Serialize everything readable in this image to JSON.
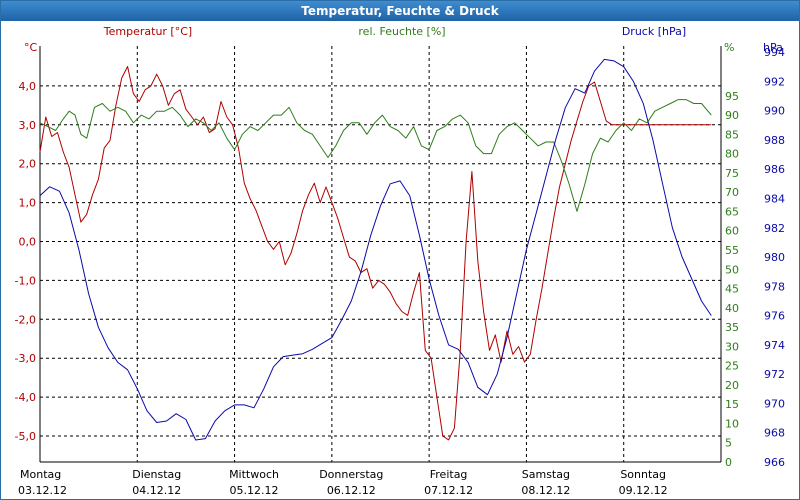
{
  "window": {
    "title": "Temperatur, Feuchte & Druck"
  },
  "chart_data": {
    "type": "line",
    "title": "Temperatur, Feuchte & Druck",
    "series": [
      {
        "name": "Temperatur [°C]",
        "unit": "°C",
        "color": "#b00000",
        "axis": "left",
        "ylim": [
          -5.5,
          5.5
        ],
        "x": [
          0,
          0.06,
          0.12,
          0.18,
          0.24,
          0.3,
          0.36,
          0.42,
          0.48,
          0.54,
          0.6,
          0.66,
          0.72,
          0.78,
          0.84,
          0.9,
          0.96,
          1.02,
          1.08,
          1.14,
          1.2,
          1.26,
          1.32,
          1.38,
          1.44,
          1.5,
          1.56,
          1.62,
          1.68,
          1.74,
          1.8,
          1.86,
          1.92,
          1.98,
          2.04,
          2.1,
          2.16,
          2.22,
          2.28,
          2.34,
          2.4,
          2.46,
          2.52,
          2.58,
          2.64,
          2.7,
          2.76,
          2.82,
          2.88,
          2.94,
          3.0,
          3.06,
          3.12,
          3.18,
          3.24,
          3.3,
          3.36,
          3.42,
          3.48,
          3.54,
          3.6,
          3.66,
          3.72,
          3.78,
          3.84,
          3.9,
          3.96,
          4.02,
          4.08,
          4.14,
          4.2,
          4.26,
          4.32,
          4.38,
          4.44,
          4.5,
          4.56,
          4.62,
          4.68,
          4.74,
          4.8,
          4.86,
          4.92,
          4.98,
          5.04,
          5.1,
          5.16,
          5.22,
          5.28,
          5.34,
          5.4,
          5.46,
          5.52,
          5.58,
          5.64,
          5.7,
          5.76,
          5.82,
          5.88,
          5.94,
          6.0,
          6.06,
          6.12,
          6.18,
          6.24,
          6.3,
          6.36,
          6.42,
          6.48,
          6.54,
          6.6,
          6.66,
          6.72,
          6.8,
          6.85,
          6.9
        ],
        "values": [
          2.3,
          3.2,
          2.7,
          2.8,
          2.3,
          1.9,
          1.2,
          0.5,
          0.7,
          1.2,
          1.6,
          2.4,
          2.6,
          3.5,
          4.2,
          4.5,
          3.8,
          3.6,
          3.9,
          4.0,
          4.3,
          4.0,
          3.5,
          3.8,
          3.9,
          3.4,
          3.2,
          3.0,
          3.2,
          2.8,
          2.9,
          3.6,
          3.2,
          3.0,
          2.4,
          1.5,
          1.1,
          0.8,
          0.4,
          0.0,
          -0.2,
          0.0,
          -0.6,
          -0.3,
          0.2,
          0.8,
          1.2,
          1.5,
          1.0,
          1.4,
          1.0,
          0.6,
          0.1,
          -0.4,
          -0.5,
          -0.8,
          -0.7,
          -1.2,
          -1.0,
          -1.1,
          -1.3,
          -1.6,
          -1.8,
          -1.9,
          -1.3,
          -0.8,
          -2.8,
          -3.0,
          -4.0,
          -5.0,
          -5.1,
          -4.8,
          -2.8,
          0.0,
          1.8,
          -0.5,
          -1.8,
          -2.8,
          -2.4,
          -3.1,
          -2.3,
          -2.9,
          -2.7,
          -3.1,
          -2.9,
          -2.0,
          -1.2,
          -0.3,
          0.6,
          1.4,
          2.0,
          2.6,
          3.1,
          3.6,
          4.0,
          4.1,
          3.6,
          3.1,
          3.0,
          3.0,
          3.0,
          3.0,
          3.0,
          3.0,
          3.0,
          3.0,
          3.0,
          3.0,
          3.0,
          3.0,
          3.0,
          3.0,
          3.0,
          3.0,
          3.0,
          3.0
        ]
      },
      {
        "name": "rel. Feuchte [%]",
        "unit": "%",
        "color": "#2f7d1a",
        "axis": "right",
        "ylim": [
          0,
          100
        ],
        "x": [
          0,
          0.08,
          0.16,
          0.24,
          0.3,
          0.36,
          0.42,
          0.48,
          0.56,
          0.64,
          0.72,
          0.8,
          0.88,
          0.96,
          1.04,
          1.12,
          1.2,
          1.28,
          1.36,
          1.44,
          1.52,
          1.6,
          1.68,
          1.76,
          1.84,
          1.92,
          2.0,
          2.08,
          2.16,
          2.24,
          2.32,
          2.4,
          2.48,
          2.56,
          2.64,
          2.72,
          2.8,
          2.88,
          2.96,
          3.04,
          3.12,
          3.2,
          3.28,
          3.36,
          3.44,
          3.52,
          3.6,
          3.68,
          3.76,
          3.84,
          3.92,
          4.0,
          4.08,
          4.16,
          4.24,
          4.32,
          4.4,
          4.48,
          4.56,
          4.64,
          4.72,
          4.8,
          4.88,
          4.96,
          5.04,
          5.12,
          5.2,
          5.28,
          5.36,
          5.44,
          5.52,
          5.6,
          5.68,
          5.76,
          5.84,
          5.92,
          6.0,
          6.08,
          6.16,
          6.24,
          6.32,
          6.4,
          6.48,
          6.56,
          6.64,
          6.72,
          6.8,
          6.9
        ],
        "values": [
          88,
          87,
          86,
          89,
          91,
          90,
          85,
          84,
          92,
          93,
          91,
          92,
          91,
          88,
          90,
          89,
          91,
          91,
          92,
          90,
          87,
          89,
          88,
          86,
          88,
          84,
          81,
          85,
          87,
          86,
          88,
          90,
          90,
          92,
          88,
          86,
          85,
          82,
          79,
          82,
          86,
          88,
          88,
          85,
          88,
          90,
          87,
          86,
          84,
          87,
          82,
          81,
          86,
          87,
          89,
          90,
          88,
          82,
          80,
          80,
          85,
          87,
          88,
          86,
          84,
          82,
          83,
          83,
          78,
          72,
          65,
          72,
          80,
          84,
          83,
          86,
          88,
          86,
          89,
          88,
          91,
          92,
          93,
          94,
          94,
          93,
          93,
          90
        ]
      },
      {
        "name": "Druck [hPa]",
        "unit": "hPa",
        "color": "#0a0aa8",
        "axis": "right-outer",
        "ylim": [
          966,
          994
        ],
        "x": [
          0,
          0.1,
          0.2,
          0.3,
          0.4,
          0.5,
          0.6,
          0.7,
          0.8,
          0.9,
          1.0,
          1.1,
          1.2,
          1.3,
          1.4,
          1.5,
          1.6,
          1.7,
          1.8,
          1.9,
          2.0,
          2.1,
          2.2,
          2.3,
          2.4,
          2.5,
          2.6,
          2.7,
          2.8,
          2.9,
          3.0,
          3.1,
          3.2,
          3.3,
          3.4,
          3.5,
          3.6,
          3.7,
          3.8,
          3.9,
          4.0,
          4.1,
          4.2,
          4.3,
          4.4,
          4.5,
          4.6,
          4.7,
          4.8,
          4.9,
          5.0,
          5.1,
          5.2,
          5.3,
          5.4,
          5.5,
          5.6,
          5.7,
          5.8,
          5.9,
          6.0,
          6.1,
          6.2,
          6.3,
          6.4,
          6.5,
          6.6,
          6.7,
          6.8,
          6.9
        ],
        "values": [
          984.2,
          984.8,
          984.5,
          983.0,
          980.5,
          977.5,
          975.2,
          973.8,
          972.8,
          972.3,
          971.0,
          969.5,
          968.7,
          968.8,
          969.3,
          968.9,
          967.5,
          967.6,
          968.8,
          969.5,
          969.9,
          969.9,
          969.7,
          971.0,
          972.5,
          973.2,
          973.3,
          973.4,
          973.7,
          974.1,
          974.5,
          975.7,
          977.0,
          979.0,
          981.5,
          983.5,
          985.0,
          985.2,
          984.2,
          981.5,
          978.5,
          976.0,
          974.0,
          973.7,
          972.8,
          971.1,
          970.6,
          972.0,
          974.5,
          977.5,
          980.5,
          983.0,
          985.5,
          988.0,
          990.2,
          991.5,
          991.2,
          992.7,
          993.5,
          993.4,
          993.0,
          992.0,
          990.5,
          988.0,
          985.0,
          982.0,
          980.0,
          978.5,
          977.0,
          976.0
        ]
      }
    ],
    "legend": [
      "Temperatur [°C]",
      "rel. Feuchte [%]",
      "Druck [hPa]"
    ],
    "left_axis": {
      "unit": "°C",
      "ticks": [
        "4,0",
        "3,0",
        "2,0",
        "1,0",
        "0,0",
        "-1,0",
        "-2,0",
        "-3,0",
        "-4,0",
        "-5,0"
      ],
      "tick_values": [
        4,
        3,
        2,
        1,
        0,
        -1,
        -2,
        -3,
        -4,
        -5
      ]
    },
    "right_axis": {
      "unit": "%",
      "ticks": [
        "95",
        "90",
        "85",
        "80",
        "75",
        "70",
        "65",
        "60",
        "55",
        "50",
        "45",
        "40",
        "35",
        "30",
        "25",
        "20",
        "15",
        "10",
        "5",
        "0"
      ],
      "tick_values": [
        95,
        90,
        85,
        80,
        75,
        70,
        65,
        60,
        55,
        50,
        45,
        40,
        35,
        30,
        25,
        20,
        15,
        10,
        5,
        0
      ]
    },
    "right_outer_axis": {
      "unit": "hPa",
      "ticks": [
        "994",
        "992",
        "990",
        "988",
        "986",
        "984",
        "982",
        "980",
        "978",
        "976",
        "974",
        "972",
        "970",
        "968",
        "966"
      ],
      "tick_values": [
        994,
        992,
        990,
        988,
        986,
        984,
        982,
        980,
        978,
        976,
        974,
        972,
        970,
        968,
        966
      ]
    },
    "x_axis": {
      "range": [
        0,
        7
      ],
      "days": [
        {
          "day": "Montag",
          "date": "03.12.12"
        },
        {
          "day": "Dienstag",
          "date": "04.12.12"
        },
        {
          "day": "Mittwoch",
          "date": "05.12.12"
        },
        {
          "day": "Donnerstag",
          "date": "06.12.12"
        },
        {
          "day": "Freitag",
          "date": "07.12.12"
        },
        {
          "day": "Samstag",
          "date": "08.12.12"
        },
        {
          "day": "Sonntag",
          "date": "09.12.12"
        }
      ]
    },
    "grid": true
  }
}
